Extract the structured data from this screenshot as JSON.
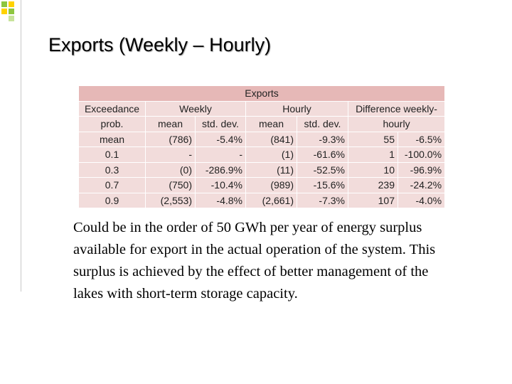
{
  "title": "Exports (Weekly – Hourly)",
  "table": {
    "caption": "Exports",
    "header_row_1": [
      "Exceedance",
      "Weekly",
      "Hourly",
      "Difference weekly-"
    ],
    "header_row_2": [
      "prob.",
      "mean",
      "std. dev.",
      "mean",
      "std. dev.",
      "hourly"
    ],
    "rows": [
      [
        "mean",
        "(786)",
        "-5.4%",
        "(841)",
        "-9.3%",
        "55",
        "-6.5%"
      ],
      [
        "0.1",
        "-",
        "-",
        "(1)",
        "-61.6%",
        "1",
        "-100.0%"
      ],
      [
        "0.3",
        "(0)",
        "-286.9%",
        "(11)",
        "-52.5%",
        "10",
        "-96.9%"
      ],
      [
        "0.7",
        "(750)",
        "-10.4%",
        "(989)",
        "-15.6%",
        "239",
        "-24.2%"
      ],
      [
        "0.9",
        "(2,553)",
        "-4.8%",
        "(2,661)",
        "-7.3%",
        "107",
        "-4.0%"
      ]
    ]
  },
  "body": "Could be in the order of 50 GWh per year of energy surplus available for export in the actual operation of the system. This surplus is achieved by the effect of better management of the lakes with short-term storage capacity."
}
